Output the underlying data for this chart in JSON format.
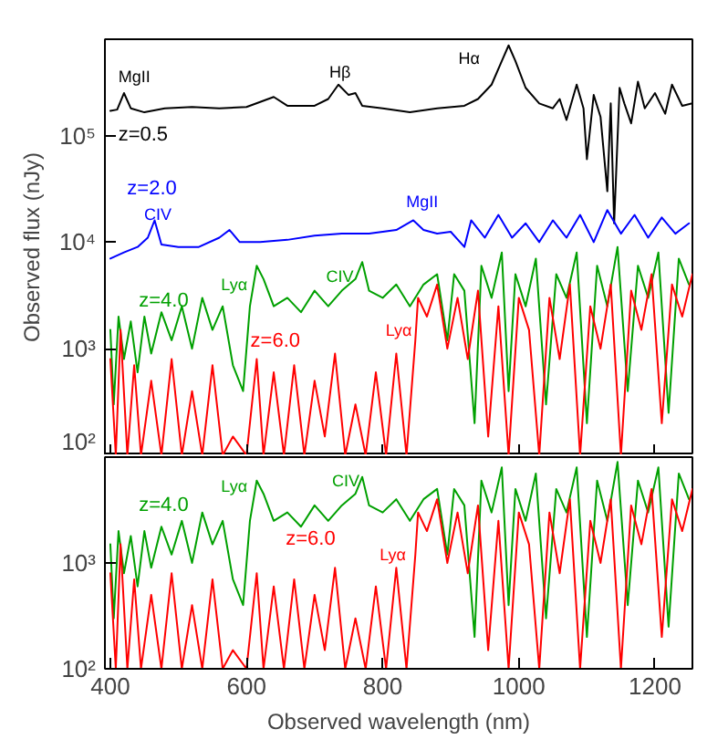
{
  "chart_data": [
    {
      "type": "line",
      "ylabel": "Observed flux (nJy)",
      "log": true,
      "grid": false,
      "tick_labels": "y",
      "xlim": [
        392,
        1255
      ],
      "ylim": [
        100,
        800000
      ],
      "xticks": [
        400,
        600,
        800,
        1000,
        1200
      ],
      "yticks": [
        {
          "value": 100,
          "label": "10²"
        },
        {
          "value": 1000,
          "label": "10³"
        },
        {
          "value": 10000,
          "label": "10⁴"
        },
        {
          "value": 100000,
          "label": "10⁵"
        }
      ],
      "series": [
        {
          "name": "z=0.5",
          "color": "#000000",
          "x": [
            400,
            410,
            420,
            430,
            450,
            480,
            520,
            560,
            600,
            640,
            660,
            700,
            720,
            735,
            750,
            760,
            770,
            800,
            840,
            880,
            920,
            940,
            960,
            975,
            985,
            995,
            1010,
            1030,
            1050,
            1060,
            1070,
            1085,
            1095,
            1100,
            1110,
            1120,
            1130,
            1135,
            1140,
            1148,
            1155,
            1165,
            1175,
            1185,
            1200,
            1215,
            1225,
            1240,
            1255
          ],
          "values": [
            170000,
            175000,
            250000,
            180000,
            165000,
            180000,
            185000,
            180000,
            185000,
            230000,
            190000,
            190000,
            220000,
            300000,
            240000,
            250000,
            190000,
            180000,
            165000,
            180000,
            190000,
            220000,
            300000,
            500000,
            700000,
            500000,
            280000,
            200000,
            180000,
            220000,
            140000,
            300000,
            180000,
            60000,
            240000,
            150000,
            30000,
            200000,
            15000,
            280000,
            200000,
            130000,
            320000,
            180000,
            250000,
            160000,
            300000,
            190000,
            200000
          ]
        },
        {
          "name": "z=2.0",
          "color": "#0000ff",
          "x": [
            400,
            420,
            440,
            455,
            465,
            475,
            500,
            530,
            560,
            575,
            590,
            620,
            660,
            700,
            740,
            780,
            820,
            845,
            860,
            880,
            900,
            920,
            930,
            950,
            970,
            990,
            1010,
            1030,
            1050,
            1070,
            1090,
            1110,
            1130,
            1150,
            1170,
            1190,
            1210,
            1230,
            1250
          ],
          "values": [
            7000,
            8000,
            9000,
            11000,
            16000,
            9500,
            9000,
            9000,
            11000,
            13000,
            10000,
            10000,
            10500,
            11500,
            12000,
            12000,
            13000,
            16000,
            13000,
            12000,
            12500,
            9000,
            16000,
            11000,
            18000,
            11000,
            15000,
            10000,
            16000,
            11000,
            18000,
            10000,
            20000,
            12000,
            18000,
            11000,
            17000,
            12000,
            15000
          ]
        },
        {
          "name": "z=4.0",
          "color": "#00a000",
          "x": [
            400,
            405,
            412,
            420,
            430,
            440,
            450,
            460,
            475,
            490,
            505,
            520,
            535,
            550,
            565,
            580,
            595,
            605,
            615,
            625,
            640,
            660,
            680,
            700,
            720,
            740,
            760,
            770,
            780,
            800,
            820,
            840,
            860,
            880,
            895,
            905,
            920,
            935,
            945,
            960,
            975,
            985,
            995,
            1010,
            1025,
            1040,
            1055,
            1070,
            1085,
            1100,
            1115,
            1130,
            1145,
            1160,
            1175,
            1190,
            1205,
            1220,
            1235,
            1250
          ],
          "values": [
            1500,
            300,
            2000,
            800,
            1800,
            600,
            2000,
            900,
            2200,
            1200,
            2500,
            1000,
            3000,
            1500,
            2500,
            700,
            400,
            2500,
            6000,
            4500,
            2500,
            3000,
            2200,
            3500,
            2500,
            3500,
            4500,
            6500,
            3500,
            3000,
            4000,
            2500,
            4000,
            5000,
            1200,
            5000,
            3500,
            200,
            6000,
            3000,
            8000,
            400,
            5000,
            2500,
            7000,
            300,
            5000,
            3000,
            8000,
            200,
            6000,
            2500,
            9000,
            400,
            6000,
            3000,
            8000,
            250,
            7000,
            4000
          ]
        },
        {
          "name": "z=6.0",
          "color": "#ff0000",
          "x": [
            400,
            408,
            415,
            425,
            435,
            445,
            460,
            475,
            490,
            505,
            520,
            535,
            550,
            565,
            580,
            600,
            615,
            625,
            640,
            655,
            670,
            685,
            700,
            715,
            730,
            745,
            760,
            775,
            790,
            805,
            820,
            835,
            848,
            852,
            865,
            880,
            895,
            910,
            925,
            940,
            955,
            970,
            985,
            1000,
            1015,
            1030,
            1045,
            1060,
            1075,
            1090,
            1105,
            1120,
            1135,
            1150,
            1165,
            1180,
            1195,
            1210,
            1225,
            1240,
            1255
          ],
          "values": [
            800,
            100,
            1500,
            100,
            700,
            100,
            500,
            100,
            800,
            100,
            400,
            100,
            700,
            100,
            150,
            100,
            800,
            100,
            600,
            100,
            700,
            100,
            500,
            150,
            900,
            100,
            300,
            100,
            600,
            100,
            900,
            100,
            1200,
            3000,
            2000,
            4000,
            1000,
            3000,
            800,
            3500,
            150,
            2500,
            100,
            3000,
            1500,
            100,
            3000,
            800,
            4000,
            100,
            2500,
            1000,
            4000,
            100,
            3500,
            1500,
            5000,
            200,
            4000,
            2000,
            5000
          ]
        }
      ],
      "annotations": [
        "MgII",
        "Hβ",
        "Hα",
        "CIV",
        "MgII",
        "Lyα",
        "CIV",
        "Lyα"
      ]
    },
    {
      "type": "line",
      "xlabel": "Observed wavelength (nm)",
      "log": true,
      "grid": false,
      "xlim": [
        392,
        1255
      ],
      "ylim": [
        100,
        10000
      ],
      "xticks": [
        400,
        600,
        800,
        1000,
        1200
      ],
      "yticks": [
        {
          "value": 100,
          "label": "10²"
        },
        {
          "value": 1000,
          "label": "10³"
        }
      ],
      "series": [
        {
          "name": "z=4.0",
          "color": "#00a000",
          "x": [
            400,
            405,
            412,
            420,
            430,
            440,
            450,
            460,
            475,
            490,
            505,
            520,
            535,
            550,
            565,
            580,
            595,
            605,
            615,
            625,
            640,
            660,
            680,
            700,
            720,
            740,
            760,
            770,
            780,
            800,
            820,
            840,
            860,
            880,
            895,
            905,
            920,
            935,
            945,
            960,
            975,
            985,
            995,
            1010,
            1025,
            1040,
            1055,
            1070,
            1085,
            1100,
            1115,
            1130,
            1145,
            1160,
            1175,
            1190,
            1205,
            1220,
            1235,
            1250
          ],
          "values": [
            1500,
            300,
            2000,
            800,
            1800,
            600,
            2000,
            900,
            2200,
            1200,
            2500,
            1000,
            3000,
            1500,
            2500,
            700,
            400,
            2500,
            6000,
            4500,
            2500,
            3000,
            2200,
            3500,
            2500,
            3500,
            4500,
            6500,
            3500,
            3000,
            4000,
            2500,
            4000,
            5000,
            1200,
            5000,
            3500,
            200,
            6000,
            3000,
            8000,
            400,
            5000,
            2500,
            7000,
            300,
            5000,
            3000,
            8000,
            200,
            6000,
            2500,
            9000,
            400,
            6000,
            3000,
            8000,
            250,
            7000,
            4000
          ]
        },
        {
          "name": "z=6.0",
          "color": "#ff0000",
          "x": [
            400,
            408,
            415,
            425,
            435,
            445,
            460,
            475,
            490,
            505,
            520,
            535,
            550,
            565,
            580,
            600,
            615,
            625,
            640,
            655,
            670,
            685,
            700,
            715,
            730,
            745,
            760,
            775,
            790,
            805,
            820,
            835,
            848,
            852,
            865,
            880,
            895,
            910,
            925,
            940,
            955,
            970,
            985,
            1000,
            1015,
            1030,
            1045,
            1060,
            1075,
            1090,
            1105,
            1120,
            1135,
            1150,
            1165,
            1180,
            1195,
            1210,
            1225,
            1240,
            1255
          ],
          "values": [
            800,
            100,
            1500,
            100,
            700,
            100,
            500,
            100,
            800,
            100,
            400,
            100,
            700,
            100,
            150,
            100,
            800,
            100,
            600,
            100,
            700,
            100,
            500,
            150,
            900,
            100,
            300,
            100,
            600,
            100,
            900,
            100,
            1200,
            3000,
            2000,
            4000,
            1000,
            3000,
            800,
            3500,
            150,
            2500,
            100,
            3000,
            1500,
            100,
            3000,
            800,
            4000,
            100,
            2500,
            1000,
            4000,
            100,
            3500,
            1500,
            5000,
            200,
            4000,
            2000,
            5000
          ]
        }
      ],
      "annotations": [
        "Lyα",
        "CIV",
        "Lyα"
      ]
    }
  ]
}
